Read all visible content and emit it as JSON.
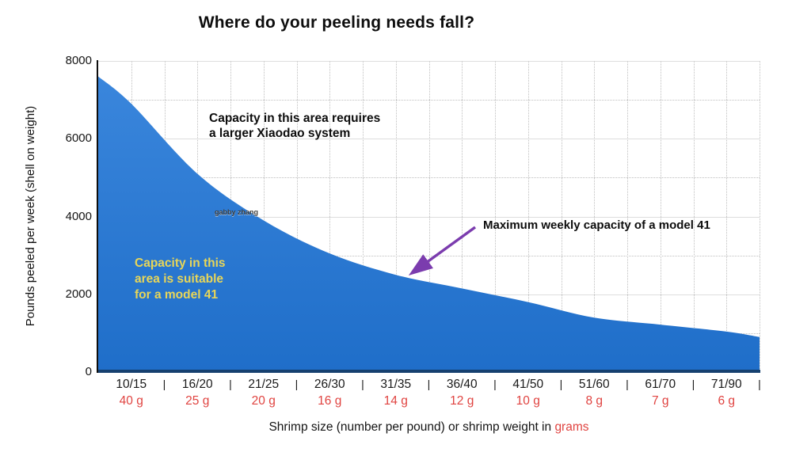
{
  "title": "Where do your peeling needs fall?",
  "watermark": "gabby zhang",
  "annotations": {
    "upper_line1": "Capacity in this area requires",
    "upper_line2": "a larger Xiaodao system",
    "suitable_line1": "Capacity in this",
    "suitable_line2": "area is suitable",
    "suitable_line3": "for a model 41",
    "max_capacity": "Maximum weekly capacity of a model 41"
  },
  "axes": {
    "y_title": "Pounds peeled per week (shell on weight)",
    "x_title_main": "Shrimp size (number per pound) or shrimp weight in",
    "x_title_highlight": "grams",
    "separator": "|"
  },
  "colors": {
    "area_top": "#3a86dc",
    "area_bottom": "#1f6ec9",
    "baseline_navy": "#16406f",
    "annotation_yellow": "#e8d658",
    "arrow_purple": "#7b3cae",
    "grams_red": "#e04340",
    "grid": "#bfbfbf"
  },
  "chart_data": {
    "type": "area",
    "title": "Where do your peeling needs fall?",
    "xlabel": "Shrimp size (number per pound) or shrimp weight in grams",
    "ylabel": "Pounds peeled per week (shell on weight)",
    "ylim": [
      0,
      8000
    ],
    "yticks": [
      0,
      2000,
      4000,
      6000,
      8000
    ],
    "grid_hint": "horizontal light solid lines at even thousands, dotted at odd thousands; vertical dotted lines at every half-category step",
    "legend": "none",
    "categories": [
      "10/15",
      "16/20",
      "21/25",
      "26/30",
      "31/35",
      "36/40",
      "41/50",
      "51/60",
      "61/70",
      "71/90"
    ],
    "gram_labels": [
      "40 g",
      "25 g",
      "20 g",
      "16 g",
      "14 g",
      "12 g",
      "10 g",
      "8 g",
      "7 g",
      "6 g"
    ],
    "series": [
      {
        "name": "Maximum weekly capacity of a model 41",
        "values_at_category_centers": [
          6900,
          5100,
          3900,
          3050,
          2500,
          2150,
          1800,
          1400,
          1220,
          1040
        ],
        "left_edge_value": 7600,
        "right_edge_value": 900
      }
    ],
    "curve_points_frac_value": [
      [
        0,
        7600
      ],
      [
        0.05,
        6900
      ],
      [
        0.15,
        5100
      ],
      [
        0.25,
        3900
      ],
      [
        0.35,
        3050
      ],
      [
        0.45,
        2500
      ],
      [
        0.55,
        2150
      ],
      [
        0.65,
        1800
      ],
      [
        0.75,
        1400
      ],
      [
        0.85,
        1220
      ],
      [
        0.95,
        1040
      ],
      [
        1,
        900
      ]
    ]
  }
}
